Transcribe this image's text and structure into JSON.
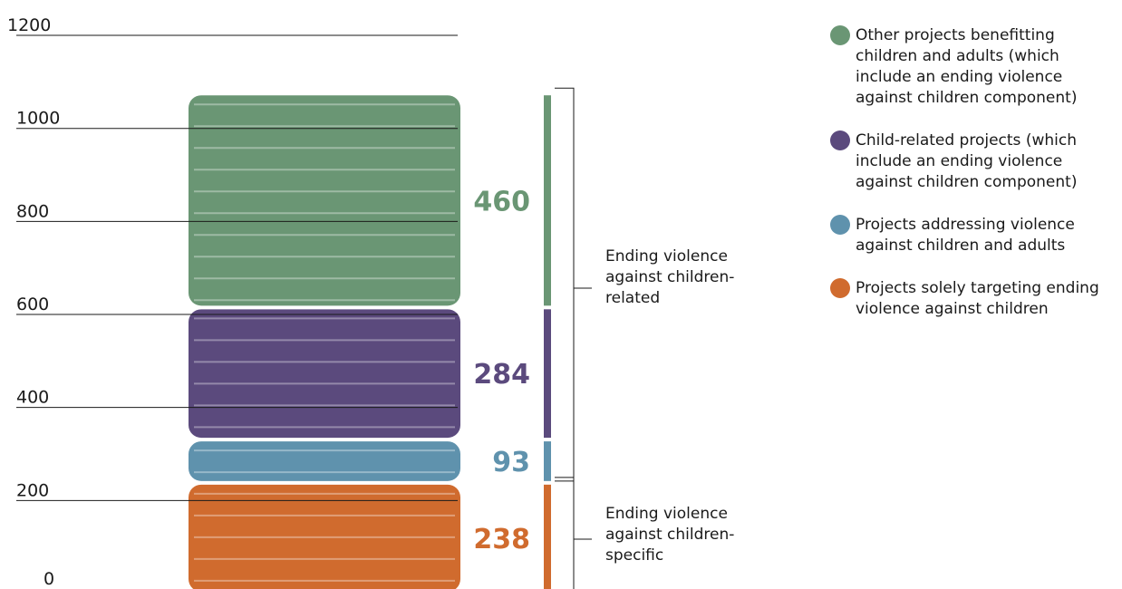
{
  "chart_data": {
    "type": "bar",
    "stacked": true,
    "ylim": [
      0,
      1200
    ],
    "yticks": [
      0,
      200,
      400,
      600,
      800,
      1000,
      1200
    ],
    "grid": true,
    "legend_position": "top-right",
    "series": [
      {
        "name": "Projects solely targeting ending violence against children",
        "value": 238,
        "value_label": "238",
        "color": "#d06b2e"
      },
      {
        "name": "Projects addressing violence against children and adults",
        "value": 93,
        "value_label": "93",
        "color": "#5f92ad"
      },
      {
        "name": "Child-related projects (which include an ending violence against children component)",
        "value": 284,
        "value_label": "284",
        "color": "#5b4a7d"
      },
      {
        "name": "Other projects benefitting children and adults (which include an ending violence against children component)",
        "value": 460,
        "value_label": "460",
        "color": "#6a9674"
      }
    ],
    "groups": [
      {
        "label": "Ending violence against children-related",
        "lines": [
          "Ending violence",
          "against children-",
          "related"
        ],
        "from_series": 1,
        "to_series": 3
      },
      {
        "label": "Ending violence against children-specific",
        "lines": [
          "Ending violence",
          "against children-",
          "specific"
        ],
        "from_series": 0,
        "to_series": 0
      }
    ]
  },
  "legend": {
    "items": [
      {
        "label": "Other projects benefitting children and adults (which include an ending violence against children component)",
        "color": "#6a9674"
      },
      {
        "label": "Child-related projects (which include an ending violence against children component)",
        "color": "#5b4a7d"
      },
      {
        "label": "Projects addressing violence against children and adults",
        "color": "#5f92ad"
      },
      {
        "label": "Projects solely targeting ending violence against children",
        "color": "#d06b2e"
      }
    ]
  }
}
